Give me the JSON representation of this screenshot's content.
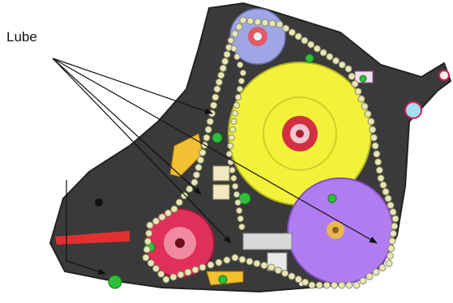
{
  "annotation": {
    "label": "Lube"
  },
  "colors": {
    "background": "#ffffff",
    "plate": "#3a3a3a",
    "plate_edge": "#222222",
    "large_gear": "#f2f23a",
    "lilac_gear": "#b07cf0",
    "red_gear": "#e0305a",
    "idler_blue": "#9fa6e6",
    "chain_link": "#e8e6b4",
    "chain_pin": "#8a8a6a",
    "green_bolt": "#2fbf3a",
    "red_stripe": "#e23030",
    "arrow": "#111111"
  }
}
